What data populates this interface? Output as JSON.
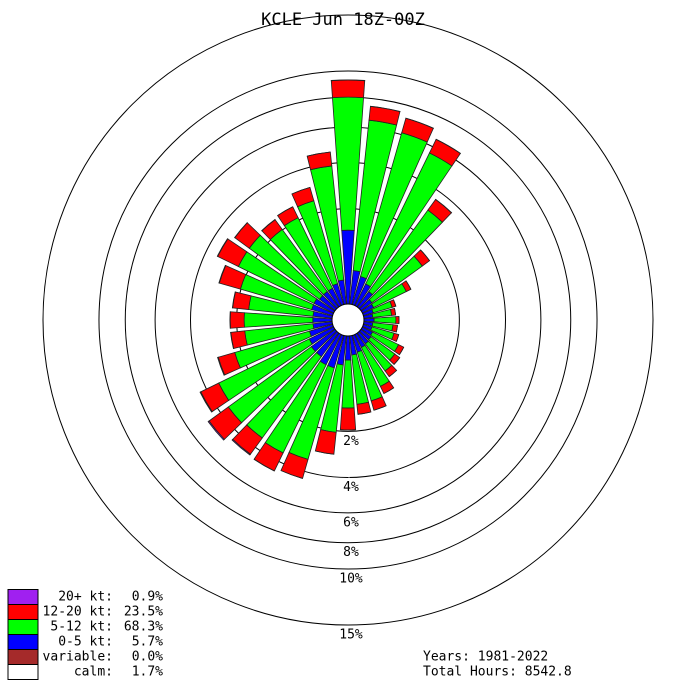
{
  "chart_data": {
    "type": "windrose",
    "title": "KCLE Jun 18Z-00Z",
    "rscale": "sqrt",
    "rlim": [
      0,
      15
    ],
    "rticks": [
      {
        "value": 2,
        "label": "2%"
      },
      {
        "value": 4,
        "label": "4%"
      },
      {
        "value": 6,
        "label": "6%"
      },
      {
        "value": 8,
        "label": "8%"
      },
      {
        "value": 10,
        "label": "10%"
      },
      {
        "value": 15,
        "label": "15%"
      }
    ],
    "series": [
      {
        "name": "20+ kt:",
        "color": "#a020f0",
        "total": 0.9,
        "total_label": "0.9%",
        "values": [
          0.02,
          0.01,
          0.01,
          0.01,
          0.01,
          0,
          0,
          0,
          0,
          0,
          0,
          0,
          0,
          0,
          0,
          0,
          0,
          0,
          0,
          0,
          0,
          0,
          0.05,
          0.06,
          0.04,
          0.03,
          0.01,
          0.01,
          0.01,
          0.02,
          0.02,
          0.01,
          0.01,
          0,
          0,
          0
        ]
      },
      {
        "name": "12-20 kt:",
        "color": "#ff0000",
        "total": 23.5,
        "total_label": "23.5%",
        "values": [
          1.27,
          0.93,
          0.98,
          0.94,
          0.6,
          0.28,
          0.11,
          0.06,
          0.06,
          0.05,
          0.07,
          0.08,
          0.11,
          0.12,
          0.15,
          0.2,
          0.28,
          0.29,
          0.7,
          0.88,
          0.99,
          1.02,
          1.01,
          1.23,
          0.99,
          0.7,
          0.5,
          0.5,
          0.56,
          0.87,
          0.99,
          0.76,
          0.46,
          0.47,
          0.59,
          0.73
        ]
      },
      {
        "name": "5-12 kt:",
        "color": "#00ff00",
        "total": 68.3,
        "total_label": "68.3%",
        "values": [
          6.71,
          6.11,
          5.79,
          5.31,
          2.78,
          1.22,
          0.55,
          0.23,
          0.21,
          0.26,
          0.23,
          0.27,
          0.39,
          0.41,
          0.5,
          0.73,
          0.96,
          0.96,
          0.99,
          1.73,
          2.99,
          3.13,
          3.1,
          3.2,
          3.04,
          1.98,
          1.54,
          1.54,
          1.41,
          1.79,
          2.17,
          2.2,
          1.82,
          1.89,
          2.25,
          3.61
        ]
      },
      {
        "name": "0-5 kt:",
        "color": "#0000ff",
        "total": 5.7,
        "total_label": "5.7%",
        "values": [
          1.3,
          0.4,
          0.33,
          0.26,
          0.2,
          0.14,
          0.13,
          0.11,
          0.1,
          0.11,
          0.1,
          0.1,
          0.12,
          0.13,
          0.14,
          0.15,
          0.18,
          0.2,
          0.26,
          0.33,
          0.4,
          0.4,
          0.33,
          0.33,
          0.3,
          0.26,
          0.2,
          0.2,
          0.2,
          0.23,
          0.23,
          0.2,
          0.2,
          0.2,
          0.23,
          0.26
        ]
      }
    ],
    "extra_legend": [
      {
        "name": "variable:",
        "color": "#a52a2a",
        "value": 0.0,
        "label": "0.0%"
      },
      {
        "name": "calm:",
        "color": "#ffffff",
        "value": 1.7,
        "label": "1.7%"
      }
    ],
    "footer": [
      "Years: 1981-2022",
      "Total Hours: 8542.8"
    ]
  }
}
